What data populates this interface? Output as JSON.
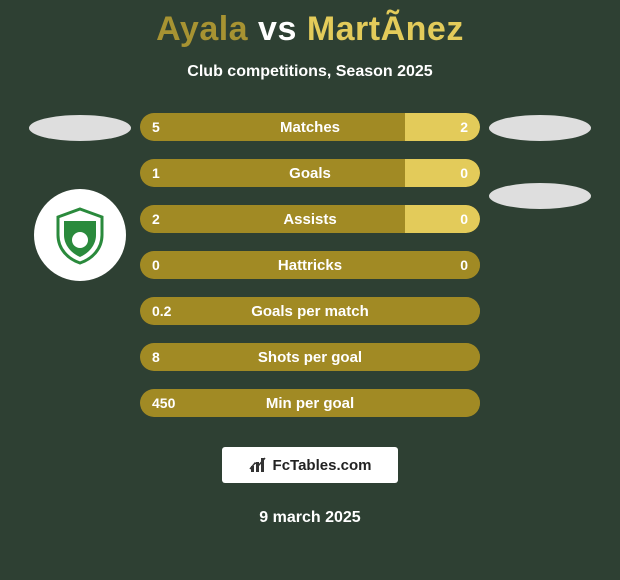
{
  "background_color": "#2e4033",
  "title": {
    "left": "Ayala",
    "vs": "vs",
    "right": "MartÃ­nez",
    "left_color": "#a79332",
    "right_color": "#e3cb5a"
  },
  "subtitle": "Club competitions, Season 2025",
  "subtitle_color": "#ffffff",
  "oval_left_color": "#dedede",
  "oval_right_color": "#dedede",
  "club_badge": {
    "shield_fill": "#ffffff",
    "shield_border": "#2a8a3c",
    "inner_fill": "#2a8a3c"
  },
  "bars": {
    "track_color": "#7b691f",
    "left_color": "#a18a24",
    "right_color": "#e3cb5a",
    "label_color": "#ffffff",
    "height": 28,
    "radius": 14,
    "gap": 18,
    "rows": [
      {
        "label": "Matches",
        "left": "5",
        "right": "2",
        "left_pct": 78,
        "right_pct": 22
      },
      {
        "label": "Goals",
        "left": "1",
        "right": "0",
        "left_pct": 78,
        "right_pct": 22
      },
      {
        "label": "Assists",
        "left": "2",
        "right": "0",
        "left_pct": 78,
        "right_pct": 22
      },
      {
        "label": "Hattricks",
        "left": "0",
        "right": "0",
        "left_pct": 100,
        "right_pct": 0
      },
      {
        "label": "Goals per match",
        "left": "0.2",
        "right": "",
        "left_pct": 100,
        "right_pct": 0
      },
      {
        "label": "Shots per goal",
        "left": "8",
        "right": "",
        "left_pct": 100,
        "right_pct": 0
      },
      {
        "label": "Min per goal",
        "left": "450",
        "right": "",
        "left_pct": 100,
        "right_pct": 0
      }
    ]
  },
  "footer": {
    "text": "FcTables.com",
    "text_color": "#222222",
    "bg": "#ffffff"
  },
  "date": "9 march 2025"
}
